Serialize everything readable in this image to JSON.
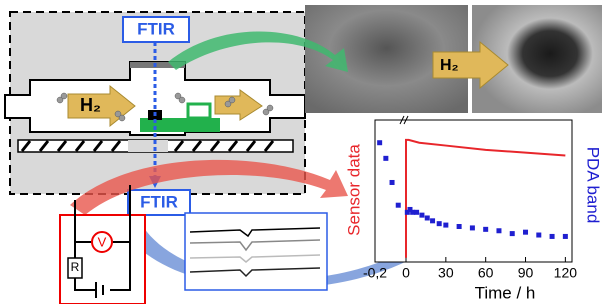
{
  "diagram": {
    "ftir_top": "FTIR",
    "ftir_bottom": "FTIR",
    "h2_cell": "H₂",
    "h2_image": "H₂",
    "resistor": "R",
    "voltmeter": "V"
  },
  "chart": {
    "type": "line-scatter",
    "xlabel": "Time / h",
    "ylabel": "Sensor data",
    "y2label": "PDA band",
    "xlim": [
      -0.2,
      125
    ],
    "ylim": [
      0,
      100
    ],
    "xticks": [
      {
        "value": -0.2,
        "label": "-0,2"
      },
      0,
      30,
      60,
      90,
      120
    ],
    "series": [
      {
        "color": "#e8262b",
        "style": "line",
        "x": [
          0,
          0,
          2,
          10,
          30,
          60,
          90,
          120
        ],
        "values": [
          3,
          86,
          86,
          84,
          82,
          79,
          77,
          75
        ]
      },
      {
        "color": "#1f1fd0",
        "style": "markers",
        "x": [
          -0.17,
          -0.13,
          -0.09,
          -0.05,
          1,
          3,
          5,
          8,
          12,
          16,
          20,
          25,
          30,
          40,
          50,
          60,
          70,
          80,
          90,
          100,
          110,
          120
        ],
        "values": [
          84,
          73,
          56,
          40,
          35,
          37,
          35,
          35,
          33,
          31,
          29,
          27,
          26,
          25,
          24,
          23,
          22,
          20,
          21,
          19,
          18,
          18
        ]
      }
    ]
  }
}
